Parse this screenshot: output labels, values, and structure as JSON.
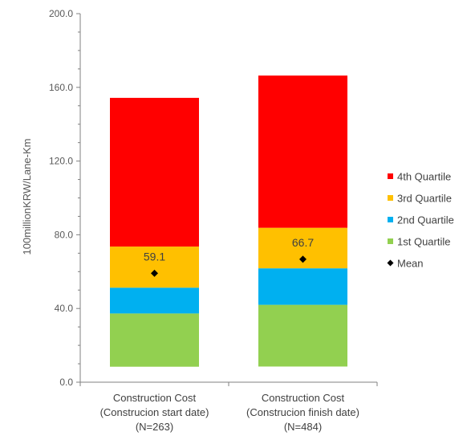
{
  "chart_data": {
    "type": "bar",
    "stacked": true,
    "ylabel": "100millionKRW/Lane-Km",
    "ylim": [
      0,
      200
    ],
    "yticks": [
      "0.0",
      "40.0",
      "80.0",
      "120.0",
      "160.0",
      "200.0"
    ],
    "categories": [
      [
        "Construction Cost",
        "(Construcion start date)",
        "(N=263)"
      ],
      [
        "Construction Cost",
        "(Construcion finish date)",
        "(N=484)"
      ]
    ],
    "series": [
      {
        "name": "1st Quartile",
        "color": "#92d050",
        "bottoms": [
          8.4,
          8.5
        ],
        "tops": [
          37.3,
          42.0
        ]
      },
      {
        "name": "2nd Quartile",
        "color": "#00b0f0",
        "bottoms": [
          37.3,
          42.0
        ],
        "tops": [
          51.3,
          61.8
        ]
      },
      {
        "name": "3rd Quartile",
        "color": "#ffc000",
        "bottoms": [
          51.3,
          61.8
        ],
        "tops": [
          73.6,
          83.8
        ]
      },
      {
        "name": "4th Quartile",
        "color": "#ff0000",
        "bottoms": [
          73.6,
          83.8
        ],
        "tops": [
          154.3,
          166.4
        ]
      }
    ],
    "mean": {
      "name": "Mean",
      "values": [
        59.1,
        66.7
      ],
      "labels": [
        "59.1",
        "66.7"
      ],
      "color": "#000000"
    },
    "legend": {
      "placement": "right",
      "order": [
        "4th Quartile",
        "3rd Quartile",
        "2nd Quartile",
        "1st Quartile",
        "Mean"
      ]
    },
    "grid": false
  }
}
